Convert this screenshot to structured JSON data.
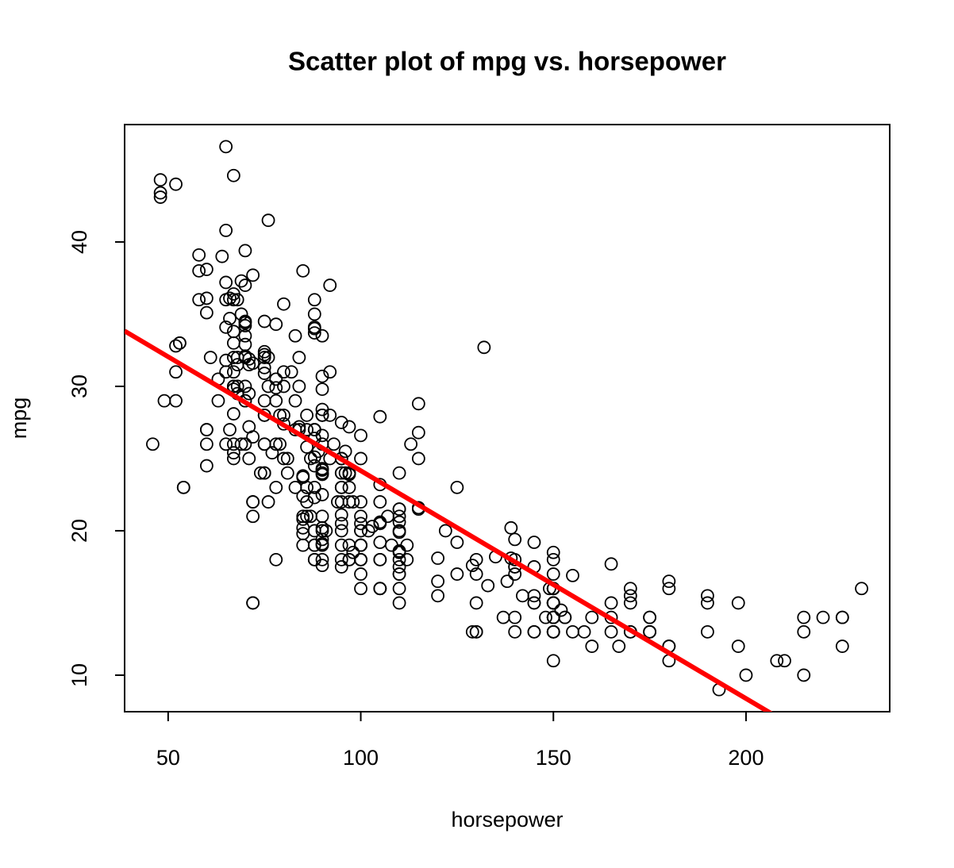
{
  "chart_data": {
    "type": "scatter",
    "title": "Scatter plot of mpg vs. horsepower",
    "x_label": "horsepower",
    "y_label": "mpg",
    "xlim": [
      38.7,
      237.3
    ],
    "ylim": [
      7.47,
      48.13
    ],
    "xticks": [
      50,
      100,
      150,
      200
    ],
    "yticks": [
      10,
      20,
      30,
      40
    ],
    "point_color": "#000000",
    "fit_line": {
      "intercept": 39.94,
      "slope": -0.1578,
      "color": "#ff0000"
    },
    "x": [
      130,
      165,
      150,
      150,
      140,
      198,
      220,
      215,
      225,
      190,
      170,
      160,
      150,
      225,
      95,
      95,
      97,
      85,
      88,
      46,
      87,
      90,
      95,
      113,
      90,
      215,
      200,
      210,
      193,
      88,
      90,
      95,
      100,
      105,
      100,
      88,
      100,
      165,
      175,
      153,
      150,
      180,
      170,
      175,
      110,
      72,
      100,
      88,
      86,
      90,
      70,
      76,
      65,
      69,
      60,
      70,
      95,
      80,
      54,
      90,
      86,
      165,
      175,
      150,
      153,
      150,
      208,
      155,
      160,
      190,
      97,
      150,
      130,
      140,
      150,
      112,
      76,
      87,
      69,
      86,
      92,
      97,
      80,
      88,
      175,
      150,
      145,
      137,
      150,
      198,
      150,
      158,
      150,
      215,
      225,
      175,
      105,
      100,
      100,
      88,
      95,
      150,
      167,
      170,
      180,
      100,
      88,
      72,
      94,
      90,
      85,
      107,
      90,
      145,
      230,
      49,
      75,
      91,
      112,
      150,
      110,
      122,
      180,
      95,
      100,
      100,
      67,
      80,
      65,
      75,
      100,
      110,
      105,
      140,
      150,
      150,
      140,
      150,
      83,
      67,
      78,
      52,
      61,
      75,
      75,
      75,
      97,
      93,
      67,
      95,
      105,
      72,
      72,
      170,
      145,
      150,
      148,
      110,
      105,
      110,
      95,
      110,
      110,
      129,
      75,
      83,
      100,
      78,
      96,
      71,
      97,
      97,
      70,
      90,
      95,
      88,
      98,
      115,
      53,
      86,
      81,
      92,
      79,
      83,
      140,
      150,
      120,
      152,
      100,
      105,
      81,
      90,
      52,
      60,
      70,
      53,
      100,
      78,
      110,
      95,
      71,
      70,
      75,
      72,
      102,
      150,
      88,
      108,
      120,
      180,
      145,
      130,
      150,
      68,
      80,
      58,
      96,
      70,
      145,
      110,
      145,
      130,
      110,
      105,
      100,
      98,
      180,
      170,
      190,
      149,
      78,
      88,
      75,
      89,
      63,
      83,
      67,
      78,
      97,
      110,
      110,
      48,
      66,
      52,
      70,
      60,
      110,
      140,
      139,
      105,
      95,
      85,
      88,
      100,
      90,
      105,
      85,
      110,
      120,
      145,
      165,
      139,
      140,
      68,
      95,
      97,
      75,
      95,
      105,
      85,
      97,
      103,
      125,
      115,
      133,
      71,
      68,
      115,
      85,
      88,
      90,
      110,
      130,
      129,
      138,
      135,
      155,
      142,
      125,
      150,
      71,
      65,
      80,
      80,
      77,
      125,
      71,
      90,
      70,
      70,
      65,
      69,
      90,
      115,
      115,
      90,
      76,
      60,
      70,
      65,
      90,
      88,
      90,
      90,
      78,
      90,
      75,
      92,
      75,
      65,
      105,
      65,
      48,
      48,
      67,
      67,
      67,
      67,
      67,
      132,
      85,
      88,
      84,
      90,
      86,
      54,
      84,
      58,
      64,
      60,
      70,
      72,
      88,
      66,
      70,
      78,
      67,
      75,
      88,
      75,
      70,
      72,
      67,
      90,
      67,
      90,
      85,
      100,
      90,
      84,
      88,
      92,
      63,
      66,
      74,
      88,
      85,
      58,
      67,
      68,
      76,
      67,
      60,
      72,
      68,
      65,
      60,
      86,
      52,
      84,
      79,
      82
    ],
    "y": [
      18,
      15,
      18,
      16,
      17,
      15,
      14,
      14,
      14,
      15,
      15,
      14,
      15,
      14,
      24,
      22,
      18,
      21,
      27,
      26,
      25,
      24,
      25,
      26,
      21,
      10,
      10,
      11,
      9,
      27,
      28,
      25,
      19,
      16,
      17,
      19,
      18,
      14,
      14,
      14,
      14,
      12,
      13,
      13,
      18,
      22,
      19,
      18,
      23,
      28,
      30,
      30,
      31,
      35,
      27,
      26,
      24,
      25,
      23,
      20,
      21,
      13,
      14,
      15,
      14,
      17,
      11,
      13,
      12,
      13,
      19,
      15,
      13,
      13,
      14,
      18,
      22,
      21,
      26,
      22,
      28,
      23,
      28,
      27,
      13,
      14,
      13,
      14,
      15,
      12,
      13,
      13,
      14,
      13,
      12,
      13,
      18,
      16,
      18,
      18,
      23,
      11,
      12,
      13,
      12,
      18,
      20,
      21,
      22,
      18,
      19,
      21,
      26,
      15,
      16,
      29,
      24,
      20,
      19,
      15,
      24,
      20,
      11,
      20,
      21,
      19,
      32,
      31,
      26,
      32,
      25,
      16,
      16,
      18,
      16,
      13,
      14,
      14,
      29,
      26,
      26,
      31,
      32,
      28,
      24,
      26,
      24,
      26,
      31,
      19,
      18,
      15,
      15,
      16,
      15,
      16,
      14,
      17,
      16,
      15,
      18,
      21,
      20,
      13,
      29,
      23,
      20,
      23,
      24,
      25,
      24,
      18,
      29,
      19,
      23,
      23,
      22,
      25,
      33,
      28,
      25,
      25,
      26,
      27,
      17.5,
      16,
      15.5,
      14.5,
      22,
      22,
      24,
      22.5,
      29,
      24.5,
      29,
      33,
      20,
      18,
      18.5,
      17.5,
      29.5,
      32,
      28,
      26.5,
      20,
      13,
      19,
      19,
      16.5,
      16.5,
      13,
      13,
      13,
      31.5,
      30,
      36,
      25.5,
      33.5,
      17.5,
      17,
      15.5,
      15,
      17.5,
      20.5,
      19,
      18.5,
      16,
      15.5,
      15.5,
      16,
      29,
      24.5,
      26,
      25.5,
      30.5,
      33.5,
      30,
      30.5,
      22,
      21.5,
      21.5,
      43.1,
      36.1,
      32.8,
      39.4,
      36.1,
      19.9,
      19.4,
      20.2,
      19.2,
      20.5,
      20.2,
      25.1,
      20.5,
      19.4,
      20.6,
      20.8,
      18.6,
      18.1,
      19.2,
      17.7,
      18.1,
      17.5,
      30,
      27.5,
      27.2,
      30.9,
      21.1,
      23.2,
      23.8,
      23.9,
      20.3,
      17,
      21.6,
      16.2,
      31.5,
      29.5,
      21.5,
      19.8,
      22.3,
      20.2,
      20.6,
      17,
      17.6,
      16.5,
      18.2,
      16.9,
      15.5,
      19.2,
      18.5,
      31.9,
      34.1,
      35.7,
      27.4,
      25.4,
      23,
      27.2,
      23.9,
      34.2,
      34.5,
      31.8,
      37.3,
      28.4,
      28.8,
      26.8,
      33.5,
      41.5,
      38.1,
      32.1,
      37.2,
      28,
      26.4,
      24.3,
      19.1,
      34.3,
      29.8,
      31.3,
      37,
      32.2,
      46.6,
      27.9,
      40.8,
      44.3,
      43.4,
      36.4,
      30,
      44.6,
      33.8,
      29.8,
      32.7,
      23.7,
      35,
      27.2,
      26.6,
      25.8,
      23,
      30,
      39.1,
      39,
      35.1,
      37,
      37.7,
      34.1,
      34.7,
      34.4,
      29.9,
      33,
      34.5,
      33.7,
      32.4,
      32.9,
      31.6,
      28.1,
      30.7,
      25.4,
      24.2,
      22.4,
      26.6,
      17.6,
      27,
      34,
      31,
      29,
      27,
      24,
      36,
      38,
      38,
      36,
      36,
      32,
      25,
      26,
      22,
      32,
      36,
      27,
      27,
      44,
      32,
      28,
      31
    ]
  }
}
